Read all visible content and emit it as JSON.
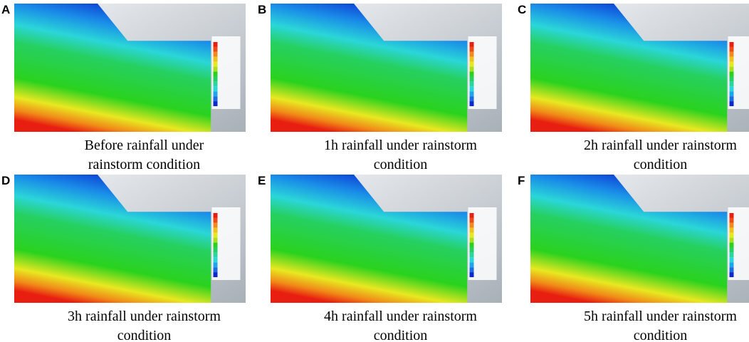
{
  "panels": [
    {
      "letter": "A",
      "caption": [
        "Before rainfall under",
        "rainstorm condition"
      ]
    },
    {
      "letter": "B",
      "caption": [
        "1h rainfall under rainstorm",
        "condition"
      ]
    },
    {
      "letter": "C",
      "caption": [
        "2h rainfall under rainstorm",
        "condition"
      ]
    },
    {
      "letter": "D",
      "caption": [
        "3h rainfall under rainstorm",
        "condition"
      ]
    },
    {
      "letter": "E",
      "caption": [
        "4h rainfall under rainstorm",
        "condition"
      ]
    },
    {
      "letter": "F",
      "caption": [
        "5h rainfall under rainstorm",
        "condition"
      ]
    }
  ]
}
